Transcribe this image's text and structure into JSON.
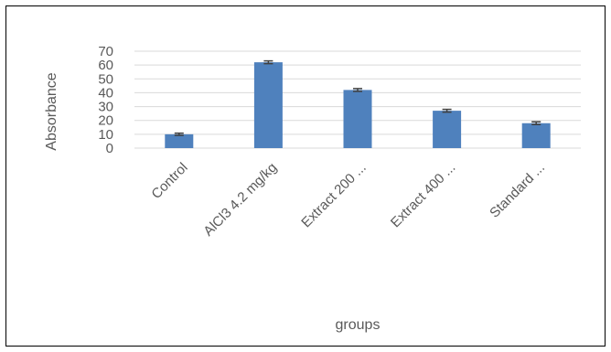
{
  "chart_data": {
    "type": "bar",
    "title": "",
    "xlabel": "groups",
    "ylabel": "Absorbance",
    "categories": [
      "Control",
      "AlCl3 4.2 mg/kg",
      "Extract 200 ...",
      "Extract 400 ...",
      "Standard ..."
    ],
    "values": [
      10,
      62,
      42,
      27,
      18
    ],
    "errors": [
      0.8,
      1.0,
      1.0,
      1.0,
      1.0
    ],
    "ylim": [
      0,
      70
    ],
    "yticks": [
      0,
      10,
      20,
      30,
      40,
      50,
      60,
      70
    ],
    "ytick_labels": [
      "0",
      "10",
      "20",
      "30",
      "40",
      "50",
      "60",
      "70"
    ],
    "grid": true,
    "bar_color": "#4f81bd",
    "error_color": "#404040",
    "grid_color": "#d9d9d9"
  }
}
